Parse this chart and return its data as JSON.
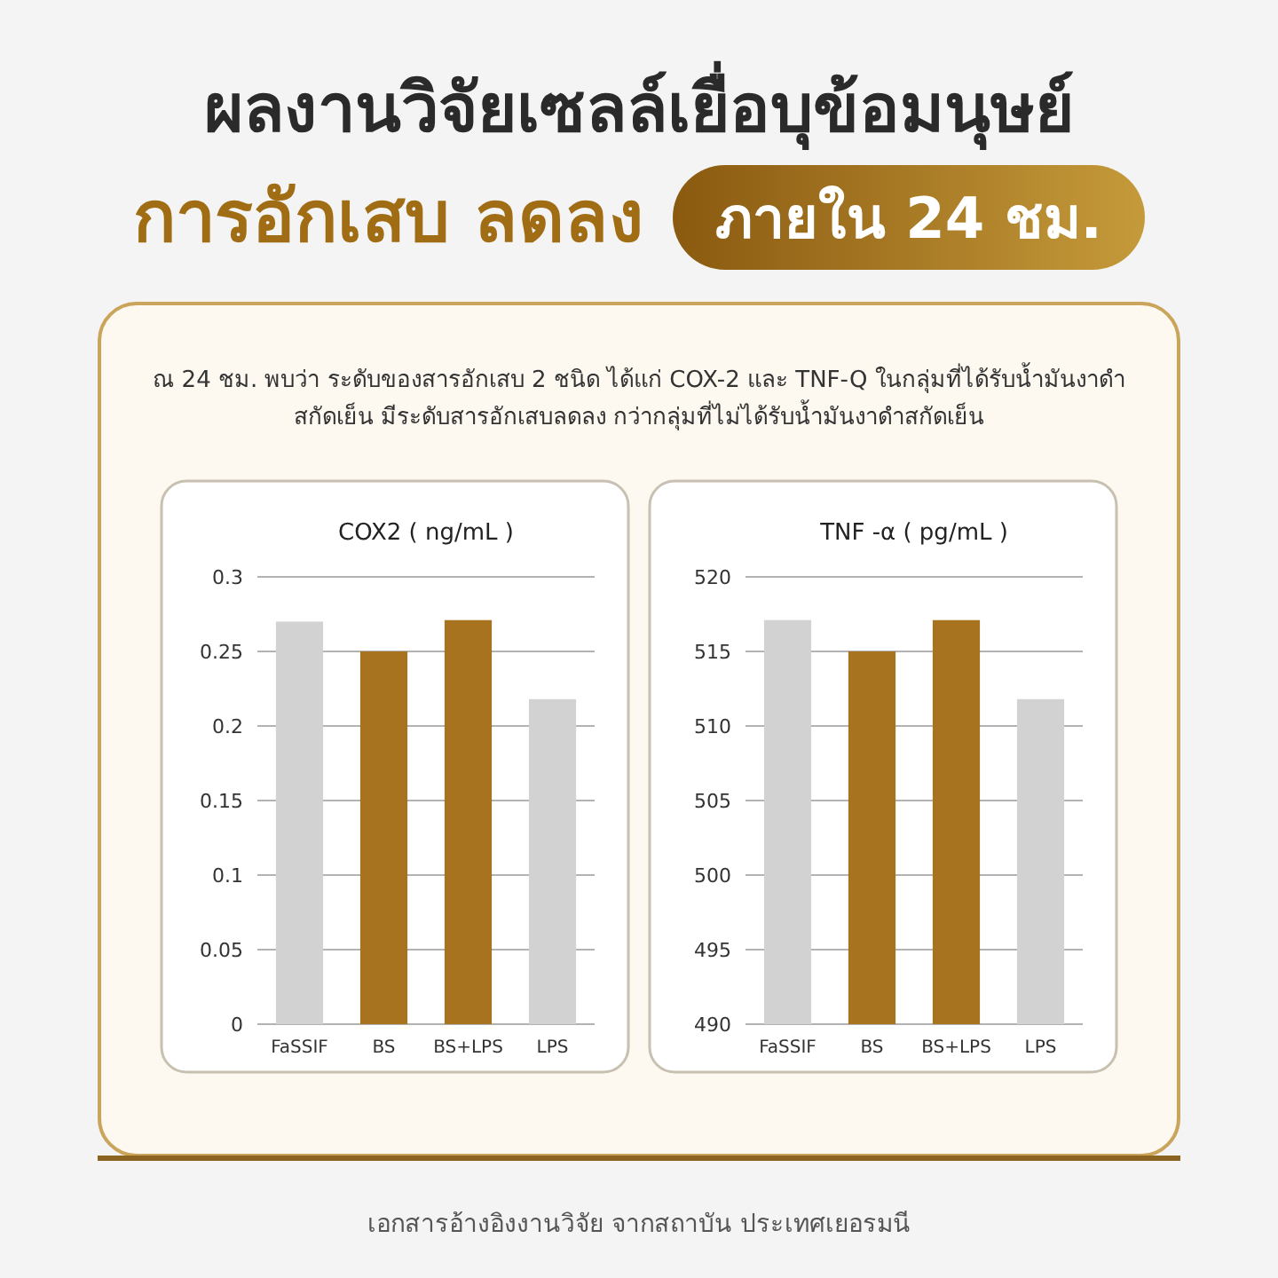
{
  "chart_data": [
    {
      "type": "other",
      "title": "ผลงานวิจัยเซลล์เยื่อบุข้อมนุษย์",
      "subtitle": "การอักเสบ ลดลง",
      "annotations": [
        "ภายใน 24 ชม.",
        "ณ 24 ชม. พบว่า ระดับของสารอักเสบ 2 ชนิด ได้แก่ COX-2 และ TNF-Q ในกลุ่มที่ได้รับน้ำมันงาดำสกัดเย็น มีระดับสารอักเสบลดลง กว่ากลุ่มที่ไม่ได้รับน้ำมันงาดำสกัดเย็น",
        "เอกสารอ้างอิงงานวิจัย จากสถาบัน ประเทศเยอรมนี"
      ]
    },
    {
      "type": "bar",
      "title": "COX2 ( ng/mL )",
      "categories": [
        "FaSSIF",
        "BS",
        "BS+LPS",
        "LPS"
      ],
      "values": [
        0.27,
        0.25,
        0.271,
        0.218
      ],
      "colors": [
        "#d2d2d2",
        "#a8731e",
        "#a8731e",
        "#d2d2d2"
      ],
      "ylim": [
        0,
        0.3
      ],
      "yticks": [
        0,
        0.05,
        0.1,
        0.15,
        0.2,
        0.25,
        0.3
      ],
      "grid": "y"
    },
    {
      "type": "bar",
      "title": "TNF -α ( pg/mL )",
      "categories": [
        "FaSSIF",
        "BS",
        "BS+LPS",
        "LPS"
      ],
      "values": [
        517.1,
        515,
        517.1,
        511.8
      ],
      "colors": [
        "#d2d2d2",
        "#a8731e",
        "#a8731e",
        "#d2d2d2"
      ],
      "ylim": [
        490,
        520
      ],
      "yticks": [
        490,
        495,
        500,
        505,
        510,
        515,
        520
      ],
      "grid": "y"
    }
  ]
}
